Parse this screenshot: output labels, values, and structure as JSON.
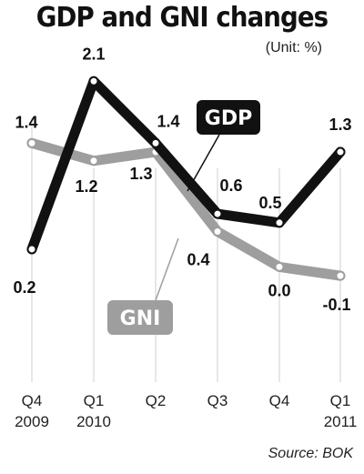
{
  "chart_data": {
    "type": "line",
    "title": "GDP and GNI changes",
    "unit": "(Unit: %)",
    "source": "Source: BOK",
    "categories": [
      {
        "top": "Q4",
        "bottom": "2009"
      },
      {
        "top": "Q1",
        "bottom": "2010"
      },
      {
        "top": "Q2",
        "bottom": ""
      },
      {
        "top": "Q3",
        "bottom": ""
      },
      {
        "top": "Q4",
        "bottom": ""
      },
      {
        "top": "Q1",
        "bottom": "2011"
      }
    ],
    "series": [
      {
        "name": "GDP",
        "color": "#111111",
        "values": [
          0.2,
          2.1,
          1.4,
          0.6,
          0.5,
          1.3
        ],
        "labels": [
          "0.2",
          "2.1",
          "1.4",
          "0.6",
          "0.5",
          "1.3"
        ]
      },
      {
        "name": "GNI",
        "color": "#9e9e9e",
        "values": [
          1.4,
          1.2,
          1.3,
          0.4,
          0.0,
          -0.1
        ],
        "labels": [
          "1.4",
          "1.2",
          "1.3",
          "0.4",
          "0.0",
          "-0.1"
        ]
      }
    ],
    "ylim": [
      -0.5,
      2.2
    ],
    "grid": "vertical-lines",
    "legend": "inline"
  }
}
